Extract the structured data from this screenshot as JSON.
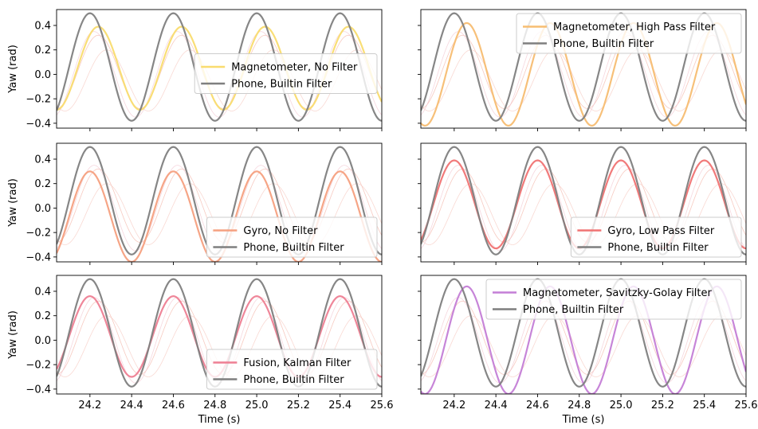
{
  "chart_data": {
    "type": "line",
    "grid": false,
    "sharex": true,
    "sharey": true,
    "xlim": [
      24.04,
      25.6
    ],
    "ylim": [
      -0.44,
      0.53
    ],
    "xticks": [
      24.2,
      24.4,
      24.6,
      24.8,
      25.0,
      25.2,
      25.4,
      25.6
    ],
    "xtick_labels": [
      "24.2",
      "24.4",
      "24.6",
      "24.8",
      "25.0",
      "25.2",
      "25.4",
      "25.6"
    ],
    "yticks": [
      -0.4,
      -0.2,
      0.0,
      0.2,
      0.4
    ],
    "ytick_labels": [
      "−0.4",
      "−0.2",
      "0.0",
      "0.2",
      "0.4"
    ],
    "xlabel": "Time (s)",
    "ylabel": "Yaw (rad)",
    "subplots": [
      {
        "row": 0,
        "col": 0,
        "legend_loc": "center-right",
        "series": [
          {
            "name": "Magnetometer, No Filter",
            "color": "#f9dc6f",
            "period": 0.4,
            "amp": 0.34,
            "offset": 0.05,
            "peak_t": 24.24
          },
          {
            "name": "Phone, Builtin Filter",
            "color": "#7f7f7f",
            "period": 0.4,
            "amp": 0.44,
            "offset": 0.06,
            "peak_t": 24.2
          }
        ]
      },
      {
        "row": 0,
        "col": 1,
        "legend_loc": "top-right",
        "series": [
          {
            "name": "Magnetometer, High Pass Filter",
            "color": "#f7bd72",
            "period": 0.4,
            "amp": 0.42,
            "offset": 0.0,
            "peak_t": 24.26
          },
          {
            "name": "Phone, Builtin Filter",
            "color": "#7f7f7f",
            "period": 0.4,
            "amp": 0.44,
            "offset": 0.06,
            "peak_t": 24.2
          }
        ]
      },
      {
        "row": 1,
        "col": 0,
        "legend_loc": "lower-right",
        "series": [
          {
            "name": "Gyro, No Filter",
            "color": "#f5a080",
            "period": 0.4,
            "amp": 0.37,
            "offset": -0.07,
            "peak_t": 24.2
          },
          {
            "name": "Phone, Builtin Filter",
            "color": "#7f7f7f",
            "period": 0.4,
            "amp": 0.44,
            "offset": 0.06,
            "peak_t": 24.2
          }
        ]
      },
      {
        "row": 1,
        "col": 1,
        "legend_loc": "lower-right",
        "series": [
          {
            "name": "Gyro, Low Pass Filter",
            "color": "#f07373",
            "period": 0.4,
            "amp": 0.36,
            "offset": 0.03,
            "peak_t": 24.2
          },
          {
            "name": "Phone, Builtin Filter",
            "color": "#7f7f7f",
            "period": 0.4,
            "amp": 0.44,
            "offset": 0.06,
            "peak_t": 24.2
          }
        ]
      },
      {
        "row": 2,
        "col": 0,
        "legend_loc": "lower-right",
        "series": [
          {
            "name": "Fusion, Kalman Filter",
            "color": "#ee7f93",
            "period": 0.4,
            "amp": 0.33,
            "offset": 0.03,
            "peak_t": 24.2
          },
          {
            "name": "Phone, Builtin Filter",
            "color": "#7f7f7f",
            "period": 0.4,
            "amp": 0.44,
            "offset": 0.06,
            "peak_t": 24.2
          }
        ]
      },
      {
        "row": 2,
        "col": 1,
        "legend_loc": "top-right",
        "series": [
          {
            "name": "Magnetometer, Savitzky-Golay Filter",
            "color": "#c47ed6",
            "period": 0.4,
            "amp": 0.44,
            "offset": 0.0,
            "peak_t": 24.26
          },
          {
            "name": "Phone, Builtin Filter",
            "color": "#7f7f7f",
            "period": 0.4,
            "amp": 0.44,
            "offset": 0.06,
            "peak_t": 24.2
          }
        ]
      }
    ]
  }
}
